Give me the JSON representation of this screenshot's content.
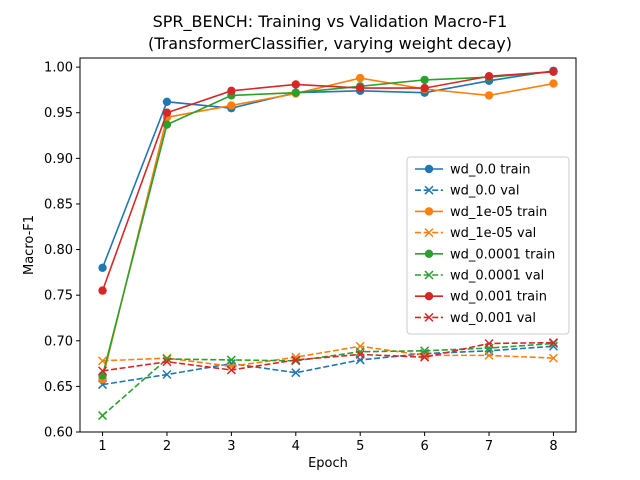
{
  "chart_data": {
    "type": "line",
    "title": "SPR_BENCH: Training vs Validation Macro-F1",
    "subtitle": "(TransformerClassifier, varying weight decay)",
    "xlabel": "Epoch",
    "ylabel": "Macro-F1",
    "x": [
      1,
      2,
      3,
      4,
      5,
      6,
      7,
      8
    ],
    "xlim": [
      0.65,
      8.35
    ],
    "ylim": [
      0.6,
      1.01
    ],
    "xticks": [
      1,
      2,
      3,
      4,
      5,
      6,
      7,
      8
    ],
    "yticks": [
      0.6,
      0.65,
      0.7,
      0.75,
      0.8,
      0.85,
      0.9,
      0.95,
      1.0
    ],
    "ytick_labels": [
      "0.60",
      "0.65",
      "0.70",
      "0.75",
      "0.80",
      "0.85",
      "0.90",
      "0.95",
      "1.00"
    ],
    "grid": false,
    "legend_position": "center-right",
    "series": [
      {
        "name": "wd_0.0 train",
        "color": "#1f77b4",
        "style": "solid",
        "marker": "circle",
        "values": [
          0.78,
          0.962,
          0.955,
          0.972,
          0.974,
          0.972,
          0.985,
          0.996
        ]
      },
      {
        "name": "wd_0.0 val",
        "color": "#1f77b4",
        "style": "dashed",
        "marker": "x",
        "values": [
          0.652,
          0.663,
          0.675,
          0.665,
          0.679,
          0.686,
          0.689,
          0.694
        ]
      },
      {
        "name": "wd_1e-05 train",
        "color": "#ff7f0e",
        "style": "solid",
        "marker": "circle",
        "values": [
          0.658,
          0.945,
          0.958,
          0.971,
          0.988,
          0.976,
          0.969,
          0.982
        ]
      },
      {
        "name": "wd_1e-05 val",
        "color": "#ff7f0e",
        "style": "dashed",
        "marker": "x",
        "values": [
          0.678,
          0.681,
          0.672,
          0.682,
          0.694,
          0.684,
          0.684,
          0.681
        ]
      },
      {
        "name": "wd_0.0001 train",
        "color": "#2ca02c",
        "style": "solid",
        "marker": "circle",
        "values": [
          0.662,
          0.937,
          0.969,
          0.972,
          0.979,
          0.986,
          0.989,
          0.995
        ]
      },
      {
        "name": "wd_0.0001 val",
        "color": "#2ca02c",
        "style": "dashed",
        "marker": "x",
        "values": [
          0.618,
          0.68,
          0.679,
          0.678,
          0.688,
          0.689,
          0.692,
          0.697
        ]
      },
      {
        "name": "wd_0.001 train",
        "color": "#d62728",
        "style": "solid",
        "marker": "circle",
        "values": [
          0.755,
          0.95,
          0.974,
          0.981,
          0.977,
          0.977,
          0.99,
          0.995
        ]
      },
      {
        "name": "wd_0.001 val",
        "color": "#d62728",
        "style": "dashed",
        "marker": "x",
        "values": [
          0.667,
          0.677,
          0.668,
          0.679,
          0.685,
          0.682,
          0.697,
          0.698
        ]
      }
    ]
  }
}
